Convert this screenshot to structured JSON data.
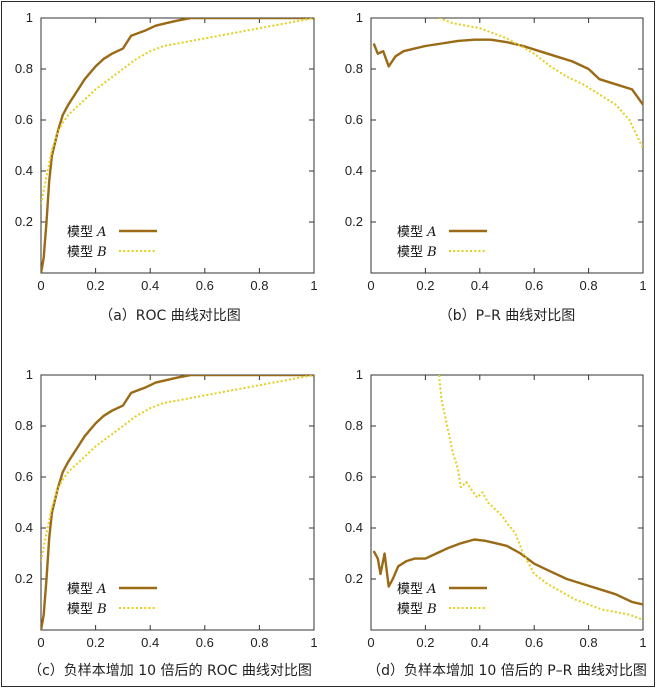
{
  "colors": {
    "A": "#9a6a16",
    "B": "#e4cf1c",
    "axis": "#333333"
  },
  "chart_data": [
    {
      "id": "a",
      "type": "line",
      "kind": "ROC",
      "caption": "（a）ROC 曲线对比图",
      "xlim": [
        0,
        1
      ],
      "ylim": [
        0,
        1
      ],
      "xticks": [
        "0",
        "0.2",
        "0.4",
        "0.6",
        "0.8",
        "1"
      ],
      "yticks": [
        "0.2",
        "0.4",
        "0.6",
        "0.8",
        "1"
      ],
      "legend_position": "bottom-left",
      "series": [
        {
          "name": "模型 A",
          "label_prefix": "模型",
          "label_var": "A",
          "style": "solid",
          "points": [
            [
              0,
              0
            ],
            [
              0.005,
              0.03
            ],
            [
              0.01,
              0.06
            ],
            [
              0.02,
              0.2
            ],
            [
              0.03,
              0.36
            ],
            [
              0.04,
              0.46
            ],
            [
              0.06,
              0.55
            ],
            [
              0.08,
              0.62
            ],
            [
              0.1,
              0.66
            ],
            [
              0.13,
              0.71
            ],
            [
              0.16,
              0.76
            ],
            [
              0.2,
              0.81
            ],
            [
              0.23,
              0.84
            ],
            [
              0.26,
              0.86
            ],
            [
              0.3,
              0.88
            ],
            [
              0.33,
              0.93
            ],
            [
              0.38,
              0.95
            ],
            [
              0.42,
              0.97
            ],
            [
              0.46,
              0.98
            ],
            [
              0.5,
              0.99
            ],
            [
              0.55,
              1.0
            ],
            [
              1,
              1
            ]
          ]
        },
        {
          "name": "模型 B",
          "label_prefix": "模型",
          "label_var": "B",
          "style": "dotted",
          "points": [
            [
              0,
              0.27
            ],
            [
              0.02,
              0.38
            ],
            [
              0.04,
              0.48
            ],
            [
              0.06,
              0.55
            ],
            [
              0.08,
              0.59
            ],
            [
              0.1,
              0.62
            ],
            [
              0.13,
              0.65
            ],
            [
              0.16,
              0.68
            ],
            [
              0.2,
              0.72
            ],
            [
              0.25,
              0.76
            ],
            [
              0.3,
              0.8
            ],
            [
              0.35,
              0.84
            ],
            [
              0.4,
              0.87
            ],
            [
              0.45,
              0.89
            ],
            [
              0.5,
              0.9
            ],
            [
              0.6,
              0.92
            ],
            [
              0.7,
              0.94
            ],
            [
              0.8,
              0.96
            ],
            [
              0.9,
              0.98
            ],
            [
              1,
              1
            ]
          ]
        }
      ]
    },
    {
      "id": "b",
      "type": "line",
      "kind": "PR",
      "caption": "（b）P–R 曲线对比图",
      "xlim": [
        0,
        1
      ],
      "ylim": [
        0,
        1
      ],
      "xticks": [
        "0",
        "0.2",
        "0.4",
        "0.6",
        "0.8",
        "1"
      ],
      "yticks": [
        "0.2",
        "0.4",
        "0.6",
        "0.8",
        "1"
      ],
      "legend_position": "bottom-left",
      "series": [
        {
          "name": "模型 A",
          "label_prefix": "模型",
          "label_var": "A",
          "style": "solid",
          "points": [
            [
              0.01,
              0.9
            ],
            [
              0.025,
              0.86
            ],
            [
              0.045,
              0.87
            ],
            [
              0.065,
              0.81
            ],
            [
              0.09,
              0.85
            ],
            [
              0.12,
              0.87
            ],
            [
              0.16,
              0.88
            ],
            [
              0.2,
              0.89
            ],
            [
              0.26,
              0.9
            ],
            [
              0.32,
              0.91
            ],
            [
              0.38,
              0.915
            ],
            [
              0.44,
              0.915
            ],
            [
              0.5,
              0.905
            ],
            [
              0.56,
              0.89
            ],
            [
              0.62,
              0.87
            ],
            [
              0.68,
              0.85
            ],
            [
              0.74,
              0.83
            ],
            [
              0.8,
              0.8
            ],
            [
              0.84,
              0.76
            ],
            [
              0.9,
              0.74
            ],
            [
              0.96,
              0.72
            ],
            [
              1,
              0.66
            ]
          ]
        },
        {
          "name": "模型 B",
          "label_prefix": "模型",
          "label_var": "B",
          "style": "dotted",
          "points": [
            [
              0.25,
              1.0
            ],
            [
              0.3,
              0.98
            ],
            [
              0.35,
              0.97
            ],
            [
              0.4,
              0.96
            ],
            [
              0.45,
              0.94
            ],
            [
              0.5,
              0.92
            ],
            [
              0.55,
              0.89
            ],
            [
              0.6,
              0.86
            ],
            [
              0.66,
              0.81
            ],
            [
              0.72,
              0.77
            ],
            [
              0.78,
              0.74
            ],
            [
              0.84,
              0.7
            ],
            [
              0.9,
              0.66
            ],
            [
              0.95,
              0.6
            ],
            [
              1,
              0.49
            ]
          ]
        }
      ]
    },
    {
      "id": "c",
      "type": "line",
      "kind": "ROC",
      "caption": "（c）负样本增加 10 倍后的 ROC 曲线对比图",
      "xlim": [
        0,
        1
      ],
      "ylim": [
        0,
        1
      ],
      "xticks": [
        "0",
        "0.2",
        "0.4",
        "0.6",
        "0.8",
        "1"
      ],
      "yticks": [
        "0.2",
        "0.4",
        "0.6",
        "0.8",
        "1"
      ],
      "legend_position": "bottom-left",
      "series": [
        {
          "name": "模型 A",
          "label_prefix": "模型",
          "label_var": "A",
          "style": "solid",
          "points": [
            [
              0,
              0
            ],
            [
              0.005,
              0.03
            ],
            [
              0.01,
              0.06
            ],
            [
              0.02,
              0.2
            ],
            [
              0.03,
              0.36
            ],
            [
              0.04,
              0.46
            ],
            [
              0.06,
              0.55
            ],
            [
              0.08,
              0.62
            ],
            [
              0.1,
              0.66
            ],
            [
              0.13,
              0.71
            ],
            [
              0.16,
              0.76
            ],
            [
              0.2,
              0.81
            ],
            [
              0.23,
              0.84
            ],
            [
              0.26,
              0.86
            ],
            [
              0.3,
              0.88
            ],
            [
              0.33,
              0.93
            ],
            [
              0.38,
              0.95
            ],
            [
              0.42,
              0.97
            ],
            [
              0.46,
              0.98
            ],
            [
              0.5,
              0.99
            ],
            [
              0.55,
              1.0
            ],
            [
              1,
              1
            ]
          ]
        },
        {
          "name": "模型 B",
          "label_prefix": "模型",
          "label_var": "B",
          "style": "dotted",
          "points": [
            [
              0,
              0.27
            ],
            [
              0.02,
              0.38
            ],
            [
              0.04,
              0.48
            ],
            [
              0.06,
              0.55
            ],
            [
              0.08,
              0.59
            ],
            [
              0.1,
              0.62
            ],
            [
              0.13,
              0.65
            ],
            [
              0.16,
              0.68
            ],
            [
              0.2,
              0.72
            ],
            [
              0.25,
              0.76
            ],
            [
              0.3,
              0.8
            ],
            [
              0.35,
              0.84
            ],
            [
              0.4,
              0.87
            ],
            [
              0.45,
              0.89
            ],
            [
              0.5,
              0.9
            ],
            [
              0.6,
              0.92
            ],
            [
              0.7,
              0.94
            ],
            [
              0.8,
              0.96
            ],
            [
              0.9,
              0.98
            ],
            [
              1,
              1
            ]
          ]
        }
      ]
    },
    {
      "id": "d",
      "type": "line",
      "kind": "PR",
      "caption": "（d）负样本增加 10 倍后的 P–R 曲线对比图",
      "xlim": [
        0,
        1
      ],
      "ylim": [
        0,
        1
      ],
      "xticks": [
        "0",
        "0.2",
        "0.4",
        "0.6",
        "0.8",
        "1"
      ],
      "yticks": [
        "0.2",
        "0.4",
        "0.6",
        "0.8",
        "1"
      ],
      "legend_position": "bottom-left",
      "series": [
        {
          "name": "模型 A",
          "label_prefix": "模型",
          "label_var": "A",
          "style": "solid",
          "points": [
            [
              0.01,
              0.31
            ],
            [
              0.025,
              0.28
            ],
            [
              0.035,
              0.22
            ],
            [
              0.05,
              0.3
            ],
            [
              0.065,
              0.17
            ],
            [
              0.08,
              0.2
            ],
            [
              0.1,
              0.25
            ],
            [
              0.13,
              0.27
            ],
            [
              0.16,
              0.28
            ],
            [
              0.2,
              0.28
            ],
            [
              0.24,
              0.3
            ],
            [
              0.28,
              0.32
            ],
            [
              0.33,
              0.34
            ],
            [
              0.38,
              0.355
            ],
            [
              0.42,
              0.35
            ],
            [
              0.46,
              0.34
            ],
            [
              0.5,
              0.33
            ],
            [
              0.55,
              0.3
            ],
            [
              0.6,
              0.26
            ],
            [
              0.66,
              0.23
            ],
            [
              0.72,
              0.2
            ],
            [
              0.78,
              0.18
            ],
            [
              0.84,
              0.16
            ],
            [
              0.9,
              0.14
            ],
            [
              0.96,
              0.11
            ],
            [
              1,
              0.1
            ]
          ]
        },
        {
          "name": "模型 B",
          "label_prefix": "模型",
          "label_var": "B",
          "style": "dotted",
          "points": [
            [
              0.25,
              1.0
            ],
            [
              0.26,
              0.9
            ],
            [
              0.28,
              0.8
            ],
            [
              0.3,
              0.7
            ],
            [
              0.32,
              0.63
            ],
            [
              0.33,
              0.56
            ],
            [
              0.35,
              0.58
            ],
            [
              0.37,
              0.55
            ],
            [
              0.39,
              0.52
            ],
            [
              0.41,
              0.54
            ],
            [
              0.43,
              0.5
            ],
            [
              0.45,
              0.48
            ],
            [
              0.48,
              0.45
            ],
            [
              0.5,
              0.42
            ],
            [
              0.53,
              0.38
            ],
            [
              0.56,
              0.3
            ],
            [
              0.6,
              0.22
            ],
            [
              0.65,
              0.18
            ],
            [
              0.7,
              0.15
            ],
            [
              0.75,
              0.12
            ],
            [
              0.8,
              0.1
            ],
            [
              0.85,
              0.08
            ],
            [
              0.9,
              0.07
            ],
            [
              0.95,
              0.06
            ],
            [
              1,
              0.04
            ]
          ]
        }
      ]
    }
  ]
}
